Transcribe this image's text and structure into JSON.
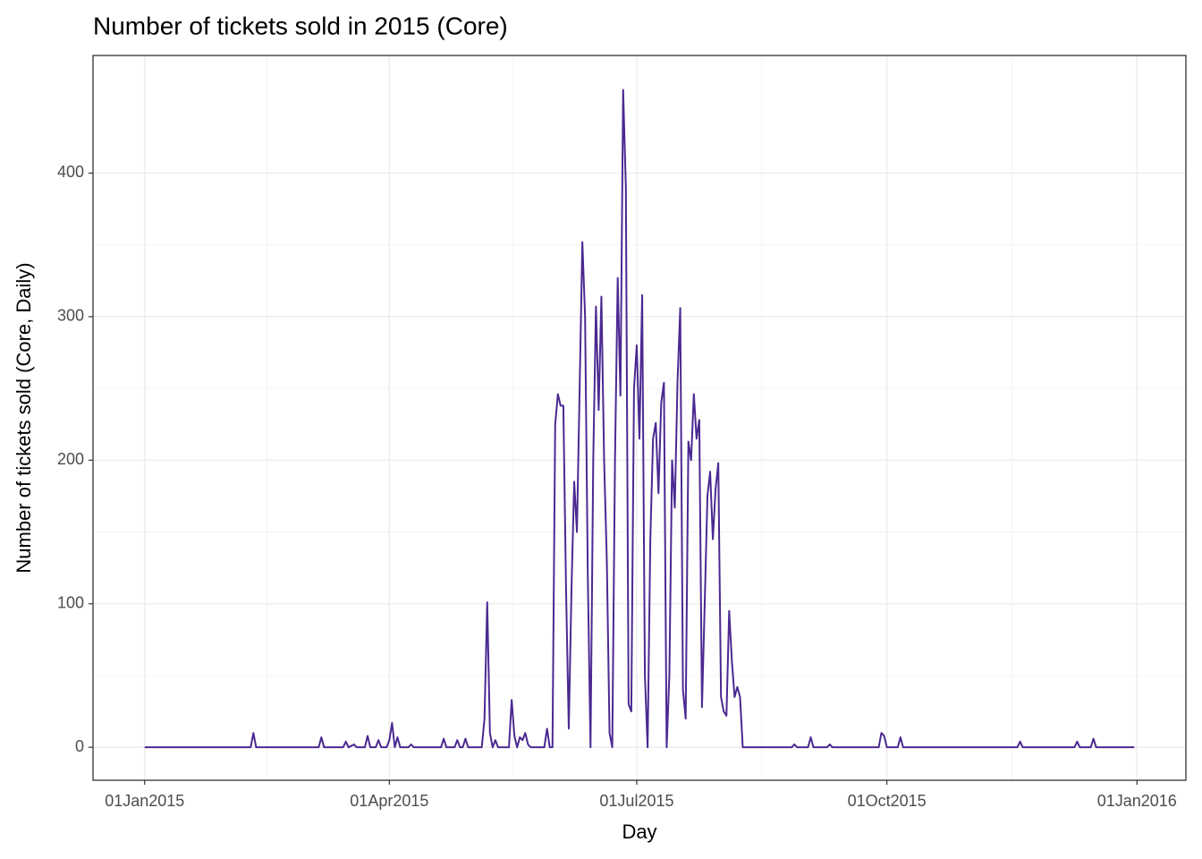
{
  "chart_data": {
    "type": "line",
    "title": "Number of tickets sold in 2015 (Core)",
    "x_label": "Day",
    "y_label": "Number of tickets sold (Core, Daily)",
    "grid": true,
    "xlim": [
      "2014-12-13",
      "2016-01-19"
    ],
    "ylim": [
      -22.95,
      481.95
    ],
    "xticks": [
      {
        "value": "2015-01-01",
        "label": "01Jan2015"
      },
      {
        "value": "2015-04-01",
        "label": "01Apr2015"
      },
      {
        "value": "2015-07-01",
        "label": "01Jul2015"
      },
      {
        "value": "2015-10-01",
        "label": "01Oct2015"
      },
      {
        "value": "2016-01-01",
        "label": "01Jan2016"
      }
    ],
    "yticks": [
      0,
      100,
      200,
      300,
      400
    ],
    "x": [
      "2015-01-01",
      "2015-02-09",
      "2015-02-10",
      "2015-02-11",
      "2015-03-06",
      "2015-03-07",
      "2015-03-08",
      "2015-03-15",
      "2015-03-16",
      "2015-03-17",
      "2015-03-19",
      "2015-03-20",
      "2015-03-23",
      "2015-03-24",
      "2015-03-25",
      "2015-03-27",
      "2015-03-28",
      "2015-03-29",
      "2015-03-31",
      "2015-04-01",
      "2015-04-02",
      "2015-04-03",
      "2015-04-04",
      "2015-04-05",
      "2015-04-08",
      "2015-04-09",
      "2015-04-10",
      "2015-04-20",
      "2015-04-21",
      "2015-04-22",
      "2015-04-25",
      "2015-04-26",
      "2015-04-27",
      "2015-04-28",
      "2015-04-29",
      "2015-04-30",
      "2015-05-05",
      "2015-05-06",
      "2015-05-07",
      "2015-05-08",
      "2015-05-09",
      "2015-05-10",
      "2015-05-11",
      "2015-05-15",
      "2015-05-16",
      "2015-05-17",
      "2015-05-18",
      "2015-05-19",
      "2015-05-20",
      "2015-05-21",
      "2015-05-22",
      "2015-05-23",
      "2015-05-28",
      "2015-05-29",
      "2015-05-30",
      "2015-05-31",
      "2015-06-01",
      "2015-06-02",
      "2015-06-03",
      "2015-06-04",
      "2015-06-05",
      "2015-06-06",
      "2015-06-07",
      "2015-06-08",
      "2015-06-09",
      "2015-06-10",
      "2015-06-11",
      "2015-06-12",
      "2015-06-13",
      "2015-06-14",
      "2015-06-15",
      "2015-06-16",
      "2015-06-17",
      "2015-06-18",
      "2015-06-19",
      "2015-06-20",
      "2015-06-21",
      "2015-06-22",
      "2015-06-23",
      "2015-06-24",
      "2015-06-25",
      "2015-06-26",
      "2015-06-27",
      "2015-06-28",
      "2015-06-29",
      "2015-06-30",
      "2015-07-01",
      "2015-07-02",
      "2015-07-03",
      "2015-07-04",
      "2015-07-05",
      "2015-07-06",
      "2015-07-07",
      "2015-07-08",
      "2015-07-09",
      "2015-07-10",
      "2015-07-11",
      "2015-07-12",
      "2015-07-13",
      "2015-07-14",
      "2015-07-15",
      "2015-07-16",
      "2015-07-17",
      "2015-07-18",
      "2015-07-19",
      "2015-07-20",
      "2015-07-21",
      "2015-07-22",
      "2015-07-23",
      "2015-07-24",
      "2015-07-25",
      "2015-07-26",
      "2015-07-27",
      "2015-07-28",
      "2015-07-29",
      "2015-07-30",
      "2015-07-31",
      "2015-08-01",
      "2015-08-02",
      "2015-08-03",
      "2015-08-04",
      "2015-08-05",
      "2015-08-06",
      "2015-08-07",
      "2015-08-08",
      "2015-08-09",
      "2015-08-27",
      "2015-08-28",
      "2015-08-29",
      "2015-09-02",
      "2015-09-03",
      "2015-09-04",
      "2015-09-09",
      "2015-09-10",
      "2015-09-11",
      "2015-09-28",
      "2015-09-29",
      "2015-09-30",
      "2015-10-01",
      "2015-10-05",
      "2015-10-06",
      "2015-10-07",
      "2015-11-18",
      "2015-11-19",
      "2015-11-20",
      "2015-12-09",
      "2015-12-10",
      "2015-12-11",
      "2015-12-15",
      "2015-12-16",
      "2015-12-17",
      "2015-12-31"
    ],
    "series": [
      {
        "name": "Core",
        "color": "#4b2991",
        "values": [
          0,
          0,
          10,
          0,
          0,
          7,
          0,
          0,
          4,
          0,
          2,
          0,
          0,
          8,
          0,
          0,
          5,
          0,
          0,
          5,
          17,
          0,
          7,
          0,
          0,
          2,
          0,
          0,
          6,
          0,
          0,
          5,
          0,
          0,
          6,
          0,
          0,
          20,
          101,
          10,
          0,
          5,
          0,
          0,
          33,
          8,
          0,
          7,
          5,
          10,
          2,
          0,
          0,
          13,
          0,
          0,
          225,
          246,
          238,
          238,
          110,
          13,
          110,
          185,
          150,
          250,
          352,
          300,
          120,
          0,
          200,
          307,
          235,
          314,
          200,
          130,
          10,
          0,
          200,
          327,
          245,
          458,
          390,
          30,
          25,
          250,
          280,
          215,
          315,
          50,
          0,
          145,
          215,
          226,
          177,
          240,
          254,
          0,
          50,
          200,
          167,
          255,
          306,
          40,
          20,
          213,
          200,
          246,
          215,
          228,
          28,
          100,
          175,
          192,
          145,
          180,
          198,
          35,
          25,
          22,
          95,
          60,
          35,
          42,
          35,
          0,
          0,
          2,
          0,
          0,
          7,
          0,
          0,
          2,
          0,
          0,
          10,
          8,
          0,
          0,
          7,
          0,
          0,
          4,
          0,
          0,
          4,
          0,
          0,
          6,
          0,
          0
        ]
      }
    ]
  }
}
